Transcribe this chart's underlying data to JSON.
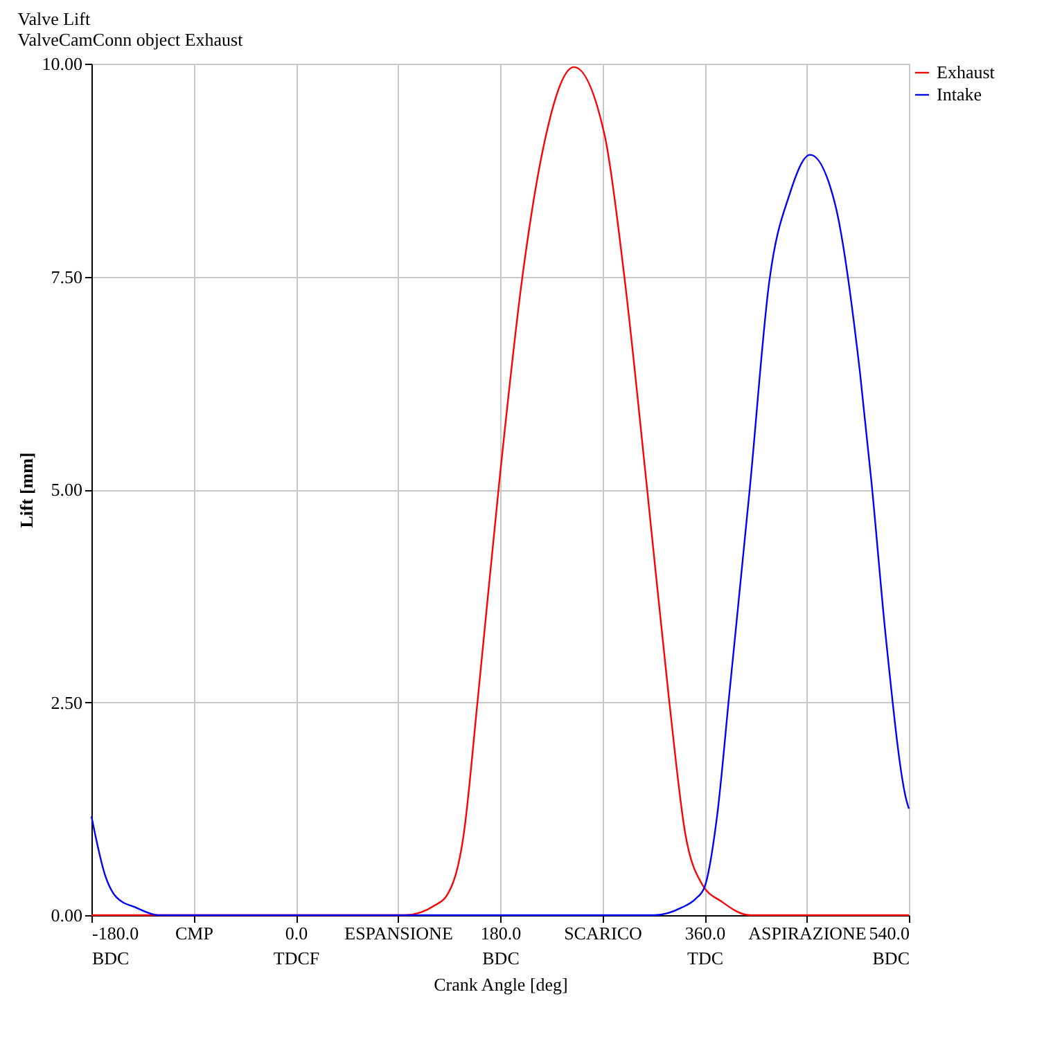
{
  "chart_data": {
    "type": "line",
    "title": "Valve Lift",
    "subtitle": "ValveCamConn object Exhaust",
    "xlabel": "Crank Angle [deg]",
    "ylabel": "Lift [mm]",
    "xlim": [
      -180,
      540
    ],
    "ylim": [
      0,
      10
    ],
    "xticks": [
      {
        "value": -180,
        "label": "-180.0\nBDC"
      },
      {
        "value": -90,
        "label": "CMP"
      },
      {
        "value": 0,
        "label": "0.0\nTDCF"
      },
      {
        "value": 90,
        "label": "ESPANSIONE"
      },
      {
        "value": 180,
        "label": "180.0\nBDC"
      },
      {
        "value": 270,
        "label": "SCARICO"
      },
      {
        "value": 360,
        "label": "360.0\nTDC"
      },
      {
        "value": 450,
        "label": "ASPIRAZIONE"
      },
      {
        "value": 540,
        "label": "540.0\nBDC"
      }
    ],
    "yticks": [
      {
        "value": 0,
        "label": "0.00"
      },
      {
        "value": 2.5,
        "label": "2.50"
      },
      {
        "value": 5,
        "label": "5.00"
      },
      {
        "value": 7.5,
        "label": "7.50"
      },
      {
        "value": 10,
        "label": "10.00"
      }
    ],
    "grid": true,
    "legend": "top right",
    "marker": "none",
    "line_style": "solid",
    "series": [
      {
        "name": "Exhaust",
        "color": "#ff0000",
        "x": [
          -180,
          96,
          123,
          133,
          148,
          160,
          179,
          200,
          217,
          245,
          272,
          289,
          309,
          329,
          343,
          358,
          375,
          400,
          540
        ],
        "values": [
          0,
          0,
          0.12,
          0.23,
          0.96,
          2.5,
          5.06,
          7.54,
          8.95,
          9.96,
          9.16,
          7.54,
          5.06,
          2.5,
          0.96,
          0.36,
          0.16,
          0,
          0
        ]
      },
      {
        "name": "Intake",
        "color": "#0000ff",
        "x": [
          -180,
          -168,
          -158,
          -141,
          -121,
          316,
          340,
          352,
          360,
          371,
          382,
          400,
          417,
          435,
          453,
          475,
          497,
          507,
          520,
          538,
          540
        ],
        "values": [
          1.16,
          0.47,
          0.21,
          0.09,
          0,
          0,
          0.09,
          0.19,
          0.33,
          1.16,
          2.62,
          5.03,
          7.44,
          8.47,
          8.93,
          8.35,
          6.36,
          5.09,
          3.22,
          1.34,
          1.25
        ]
      }
    ]
  }
}
